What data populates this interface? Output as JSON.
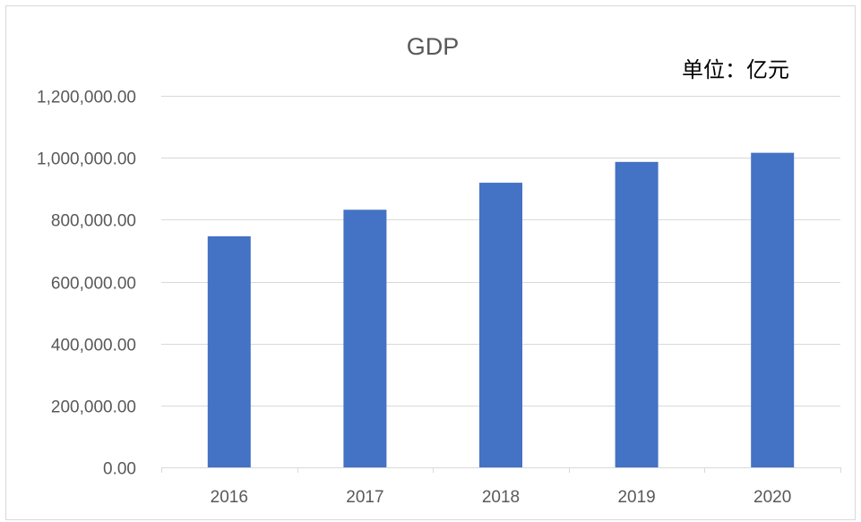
{
  "chart_data": {
    "type": "bar",
    "title": "GDP",
    "unit_label": "单位：亿元",
    "xlabel": "",
    "ylabel": "",
    "categories": [
      "2016",
      "2017",
      "2018",
      "2019",
      "2020"
    ],
    "values": [
      746395,
      832036,
      919281,
      986515,
      1015986
    ],
    "ylim": [
      0,
      1200000
    ],
    "yticks": [
      0,
      200000,
      400000,
      600000,
      800000,
      1000000,
      1200000
    ],
    "ytick_labels": [
      "0.00",
      "200,000.00",
      "400,000.00",
      "600,000.00",
      "800,000.00",
      "1,000,000.00",
      "1,200,000.00"
    ],
    "grid": true,
    "legend": "none",
    "bar_color": "#4472C4"
  }
}
